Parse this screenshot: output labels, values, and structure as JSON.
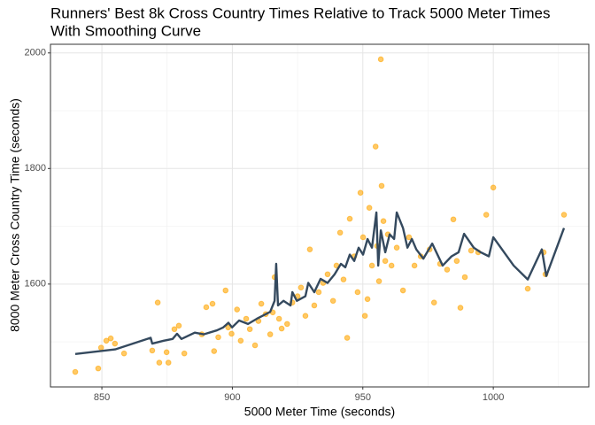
{
  "chart_data": {
    "type": "scatter",
    "title": [
      "Runners' Best 8k Cross Country Times Relative to Track 5000 Meter Times",
      "With Smoothing Curve"
    ],
    "x_label": "5000 Meter Time (seconds)",
    "y_label": "8000 Meter Cross Country Time (seconds)",
    "xlim": [
      830.3,
      1036.6
    ],
    "ylim": [
      1422,
      2015
    ],
    "xticks": [
      850,
      900,
      950,
      1000
    ],
    "yticks": [
      1600,
      1800,
      2000
    ],
    "xminor": [
      875,
      925,
      975,
      1025
    ],
    "yminor": [
      1500,
      1700,
      1900
    ],
    "grid": true,
    "series": [
      {
        "style": "points",
        "color": "#FFA500",
        "x": [
          839.8,
          848.6,
          849.7,
          851.7,
          853.4,
          855,
          858.5,
          869.3,
          871.4,
          872,
          874.8,
          875.5,
          877.8,
          879.5,
          881.6,
          888.3,
          890,
          892.4,
          893,
          894.6,
          897.4,
          898.4,
          899.7,
          901.8,
          903.2,
          905.3,
          906.7,
          908.7,
          910,
          911.1,
          912.8,
          914.5,
          915.5,
          916.2,
          917.9,
          918.9,
          921,
          923,
          925,
          926.3,
          928,
          929.7,
          931.4,
          933.1,
          934.8,
          936.5,
          938.6,
          939.9,
          941.3,
          942.6,
          944,
          945,
          946.7,
          948,
          949.1,
          950.1,
          950.8,
          951.8,
          952.5,
          953.5,
          954.9,
          955.5,
          956.2,
          956.9,
          957.2,
          957.9,
          958.6,
          959.6,
          961,
          963,
          965.4,
          967.7,
          969.8,
          972.2,
          975.6,
          977.3,
          979.6,
          982.3,
          984.7,
          986,
          987.4,
          989.1,
          991.5,
          994.2,
          997.3,
          1000,
          1013.2,
          1019.3,
          1020,
          1027.1
        ],
        "values": [
          1448,
          1454,
          1490,
          1502,
          1506,
          1497,
          1480,
          1485,
          1568,
          1464,
          1482,
          1464,
          1522,
          1528,
          1480,
          1513,
          1560,
          1566,
          1484,
          1508,
          1589,
          1525,
          1514,
          1556,
          1502,
          1540,
          1522,
          1494,
          1536,
          1566,
          1548,
          1513,
          1551,
          1612,
          1540,
          1523,
          1531,
          1568,
          1579,
          1594,
          1545,
          1660,
          1563,
          1586,
          1602,
          1617,
          1571,
          1632,
          1689,
          1608,
          1507,
          1713,
          1648,
          1586,
          1758,
          1681,
          1545,
          1574,
          1732,
          1632,
          1838,
          1666,
          1605,
          1989,
          1770,
          1709,
          1640,
          1686,
          1632,
          1663,
          1589,
          1681,
          1632,
          1648,
          1660,
          1568,
          1635,
          1625,
          1712,
          1640,
          1559,
          1612,
          1658,
          1655,
          1720,
          1767,
          1592,
          1655,
          1617,
          1720
        ]
      },
      {
        "style": "line",
        "color": "#34495e",
        "x": [
          839.8,
          855.1,
          868.7,
          869.3,
          873.7,
          877.1,
          878.8,
          880.5,
          885.6,
          889,
          894.1,
          896.5,
          898.5,
          899.9,
          902.6,
          906,
          909.4,
          912.8,
          914.5,
          916.2,
          916.8,
          917.5,
          919.6,
          922.3,
          923,
          924.7,
          928,
          929.1,
          931.4,
          933.8,
          936.5,
          939.2,
          941.6,
          943.3,
          945,
          946.7,
          948.4,
          950.1,
          951.8,
          953.5,
          955.2,
          955.9,
          956.9,
          958.6,
          960.3,
          962,
          963,
          965.4,
          967.1,
          968.8,
          970.5,
          973.2,
          976.6,
          980.6,
          984,
          986.7,
          988.8,
          992.5,
          995.2,
          998.3,
          1000,
          1007.8,
          1013.2,
          1018.6,
          1020.3,
          1027.1
        ],
        "values": [
          1479,
          1487,
          1507,
          1497,
          1502,
          1505,
          1514,
          1505,
          1516,
          1513,
          1520,
          1525,
          1533,
          1525,
          1537,
          1531,
          1540,
          1548,
          1552,
          1571,
          1635,
          1563,
          1571,
          1563,
          1586,
          1571,
          1579,
          1602,
          1586,
          1609,
          1602,
          1617,
          1635,
          1629,
          1651,
          1640,
          1663,
          1651,
          1678,
          1663,
          1724,
          1632,
          1693,
          1655,
          1686,
          1678,
          1724,
          1697,
          1663,
          1678,
          1660,
          1644,
          1670,
          1632,
          1648,
          1655,
          1687,
          1663,
          1655,
          1648,
          1681,
          1632,
          1608,
          1660,
          1614,
          1697
        ]
      }
    ]
  }
}
